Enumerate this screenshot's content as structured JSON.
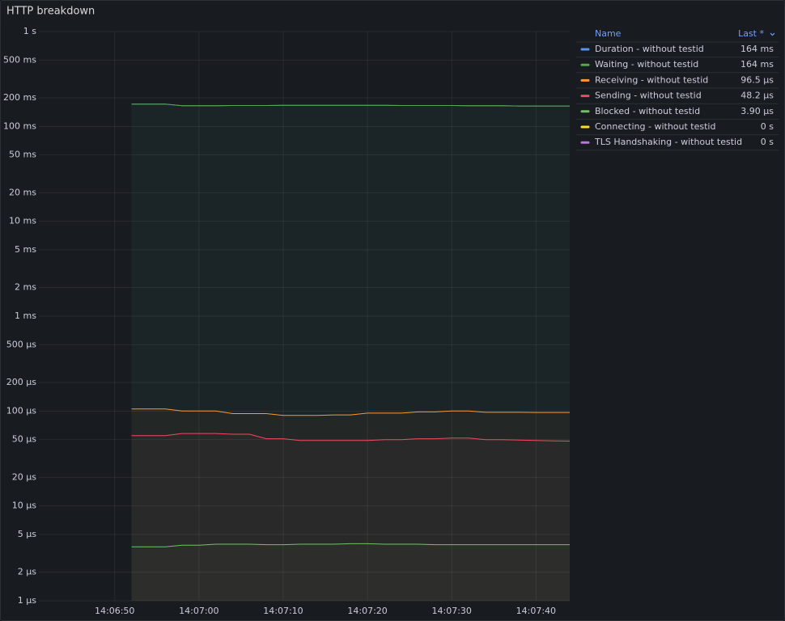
{
  "chart_data": {
    "type": "line",
    "title": "HTTP breakdown",
    "log_scale": true,
    "grid": true,
    "fill_area": true,
    "legend_position": "right",
    "legend_columns": [
      "Name",
      "Last *"
    ],
    "xlim": [
      "14:06:41",
      "14:07:44"
    ],
    "xticks": [
      "14:06:50",
      "14:07:00",
      "14:07:10",
      "14:07:20",
      "14:07:30",
      "14:07:40"
    ],
    "ylim": [
      1e-06,
      1
    ],
    "yticks": [
      {
        "value": 1,
        "label": "1 s"
      },
      {
        "value": 0.5,
        "label": "500 ms"
      },
      {
        "value": 0.2,
        "label": "200 ms"
      },
      {
        "value": 0.1,
        "label": "100 ms"
      },
      {
        "value": 0.05,
        "label": "50 ms"
      },
      {
        "value": 0.02,
        "label": "20 ms"
      },
      {
        "value": 0.01,
        "label": "10 ms"
      },
      {
        "value": 0.005,
        "label": "5 ms"
      },
      {
        "value": 0.002,
        "label": "2 ms"
      },
      {
        "value": 0.001,
        "label": "1 ms"
      },
      {
        "value": 0.0005,
        "label": "500 µs"
      },
      {
        "value": 0.0002,
        "label": "200 µs"
      },
      {
        "value": 0.0001,
        "label": "100 µs"
      },
      {
        "value": 5e-05,
        "label": "50 µs"
      },
      {
        "value": 2e-05,
        "label": "20 µs"
      },
      {
        "value": 1e-05,
        "label": "10 µs"
      },
      {
        "value": 5e-06,
        "label": "5 µs"
      },
      {
        "value": 2e-06,
        "label": "2 µs"
      },
      {
        "value": 1e-06,
        "label": "1 µs"
      }
    ],
    "x": [
      "14:06:52",
      "14:06:54",
      "14:06:56",
      "14:06:58",
      "14:07:00",
      "14:07:02",
      "14:07:04",
      "14:07:06",
      "14:07:08",
      "14:07:10",
      "14:07:12",
      "14:07:14",
      "14:07:16",
      "14:07:18",
      "14:07:20",
      "14:07:22",
      "14:07:24",
      "14:07:26",
      "14:07:28",
      "14:07:30",
      "14:07:32",
      "14:07:34",
      "14:07:36",
      "14:07:38",
      "14:07:40",
      "14:07:42",
      "14:07:44"
    ],
    "series": [
      {
        "name": "Duration - without testid",
        "color": "#5794f2",
        "last": "164 ms",
        "values": [
          0.172,
          0.172,
          0.172,
          0.165,
          0.165,
          0.165,
          0.166,
          0.166,
          0.166,
          0.167,
          0.167,
          0.167,
          0.167,
          0.167,
          0.167,
          0.167,
          0.166,
          0.166,
          0.166,
          0.166,
          0.165,
          0.165,
          0.165,
          0.164,
          0.164,
          0.164,
          0.164
        ]
      },
      {
        "name": "Waiting - without testid",
        "color": "#56a64b",
        "last": "164 ms",
        "values": [
          0.172,
          0.172,
          0.172,
          0.165,
          0.165,
          0.165,
          0.166,
          0.166,
          0.166,
          0.167,
          0.167,
          0.167,
          0.167,
          0.167,
          0.167,
          0.167,
          0.166,
          0.166,
          0.166,
          0.166,
          0.165,
          0.165,
          0.165,
          0.164,
          0.164,
          0.164,
          0.164
        ]
      },
      {
        "name": "Receiving - without testid",
        "color": "#ff9830",
        "last": "96.5 µs",
        "values": [
          0.000105,
          0.000105,
          0.000105,
          0.0001,
          0.0001,
          0.0001,
          9.4e-05,
          9.4e-05,
          9.4e-05,
          9e-05,
          9e-05,
          9e-05,
          9.1e-05,
          9.1e-05,
          9.5e-05,
          9.5e-05,
          9.5e-05,
          9.8e-05,
          9.8e-05,
          0.0001,
          0.0001,
          9.7e-05,
          9.7e-05,
          9.7e-05,
          9.65e-05,
          9.65e-05,
          9.65e-05
        ]
      },
      {
        "name": "Sending - without testid",
        "color": "#f2495c",
        "last": "48.2 µs",
        "values": [
          5.5e-05,
          5.5e-05,
          5.5e-05,
          5.8e-05,
          5.8e-05,
          5.8e-05,
          5.7e-05,
          5.7e-05,
          5.1e-05,
          5.1e-05,
          4.9e-05,
          4.9e-05,
          4.9e-05,
          4.9e-05,
          4.9e-05,
          5e-05,
          5e-05,
          5.1e-05,
          5.1e-05,
          5.2e-05,
          5.2e-05,
          5e-05,
          5e-05,
          4.95e-05,
          4.9e-05,
          4.85e-05,
          4.82e-05
        ]
      },
      {
        "name": "Blocked - without testid",
        "color": "#73bf69",
        "last": "3.90 µs",
        "values": [
          3.7e-06,
          3.7e-06,
          3.7e-06,
          3.85e-06,
          3.85e-06,
          3.95e-06,
          3.95e-06,
          3.95e-06,
          3.9e-06,
          3.9e-06,
          3.95e-06,
          3.95e-06,
          3.95e-06,
          4e-06,
          4e-06,
          3.95e-06,
          3.95e-06,
          3.95e-06,
          3.9e-06,
          3.9e-06,
          3.9e-06,
          3.9e-06,
          3.9e-06,
          3.9e-06,
          3.9e-06,
          3.9e-06,
          3.9e-06
        ]
      },
      {
        "name": "Connecting - without testid",
        "color": "#fade2a",
        "last": "0 s"
      },
      {
        "name": "TLS Handshaking - without testid",
        "color": "#b877d9",
        "last": "0 s"
      }
    ]
  }
}
